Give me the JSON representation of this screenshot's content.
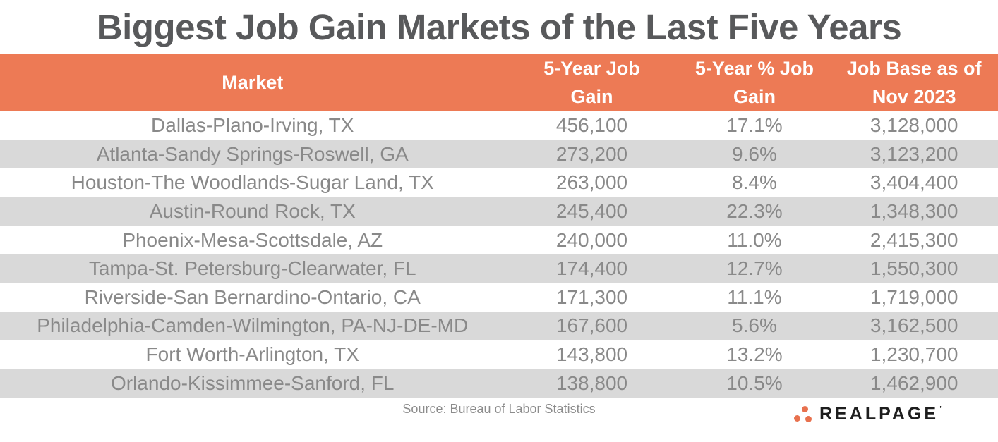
{
  "title": "Biggest Job Gain Markets of the Last Five Years",
  "colors": {
    "header_bg": "#ED7A55",
    "header_text": "#FFFFFF",
    "stripe": "#D9D9D9",
    "title_text": "#58595B",
    "cell_text": "#898989",
    "source_text": "#8C8C8C",
    "logo_text": "#1E1E1E",
    "logo_dot": "#E8714E"
  },
  "table": {
    "columns": [
      {
        "label": "Market"
      },
      {
        "label": "5-Year Job\nGain"
      },
      {
        "label": "5-Year % Job\nGain"
      },
      {
        "label": "Job Base as of\nNov 2023"
      }
    ],
    "rows": [
      {
        "market": "Dallas-Plano-Irving, TX",
        "job_gain": "456,100",
        "pct_gain": "17.1%",
        "job_base": "3,128,000"
      },
      {
        "market": "Atlanta-Sandy Springs-Roswell, GA",
        "job_gain": "273,200",
        "pct_gain": "9.6%",
        "job_base": "3,123,200"
      },
      {
        "market": "Houston-The Woodlands-Sugar Land, TX",
        "job_gain": "263,000",
        "pct_gain": "8.4%",
        "job_base": "3,404,400"
      },
      {
        "market": "Austin-Round Rock, TX",
        "job_gain": "245,400",
        "pct_gain": "22.3%",
        "job_base": "1,348,300"
      },
      {
        "market": "Phoenix-Mesa-Scottsdale, AZ",
        "job_gain": "240,000",
        "pct_gain": "11.0%",
        "job_base": "2,415,300"
      },
      {
        "market": "Tampa-St. Petersburg-Clearwater, FL",
        "job_gain": "174,400",
        "pct_gain": "12.7%",
        "job_base": "1,550,300"
      },
      {
        "market": "Riverside-San Bernardino-Ontario, CA",
        "job_gain": "171,300",
        "pct_gain": "11.1%",
        "job_base": "1,719,000"
      },
      {
        "market": "Philadelphia-Camden-Wilmington, PA-NJ-DE-MD",
        "job_gain": "167,600",
        "pct_gain": "5.6%",
        "job_base": "3,162,500"
      },
      {
        "market": "Fort Worth-Arlington, TX",
        "job_gain": "143,800",
        "pct_gain": "13.2%",
        "job_base": "1,230,700"
      },
      {
        "market": "Orlando-Kissimmee-Sanford, FL",
        "job_gain": "138,800",
        "pct_gain": "10.5%",
        "job_base": "1,462,900"
      }
    ]
  },
  "footer": {
    "source": "Source: Bureau of Labor Statistics",
    "logo_text": "REALPAGE",
    "logo_tm": "’"
  },
  "chart_data": {
    "type": "table",
    "title": "Biggest Job Gain Markets of the Last Five Years",
    "columns": [
      "Market",
      "5-Year Job Gain",
      "5-Year % Job Gain",
      "Job Base as of Nov 2023"
    ],
    "rows": [
      [
        "Dallas-Plano-Irving, TX",
        456100,
        17.1,
        3128000
      ],
      [
        "Atlanta-Sandy Springs-Roswell, GA",
        273200,
        9.6,
        3123200
      ],
      [
        "Houston-The Woodlands-Sugar Land, TX",
        263000,
        8.4,
        3404400
      ],
      [
        "Austin-Round Rock, TX",
        245400,
        22.3,
        1348300
      ],
      [
        "Phoenix-Mesa-Scottsdale, AZ",
        240000,
        11.0,
        2415300
      ],
      [
        "Tampa-St. Petersburg-Clearwater, FL",
        174400,
        12.7,
        1550300
      ],
      [
        "Riverside-San Bernardino-Ontario, CA",
        171300,
        11.1,
        1719000
      ],
      [
        "Philadelphia-Camden-Wilmington, PA-NJ-DE-MD",
        167600,
        5.6,
        3162500
      ],
      [
        "Fort Worth-Arlington, TX",
        143800,
        13.2,
        1230700
      ],
      [
        "Orlando-Kissimmee-Sanford, FL",
        138800,
        10.5,
        1462900
      ]
    ],
    "source": "Source: Bureau of Labor Statistics"
  }
}
